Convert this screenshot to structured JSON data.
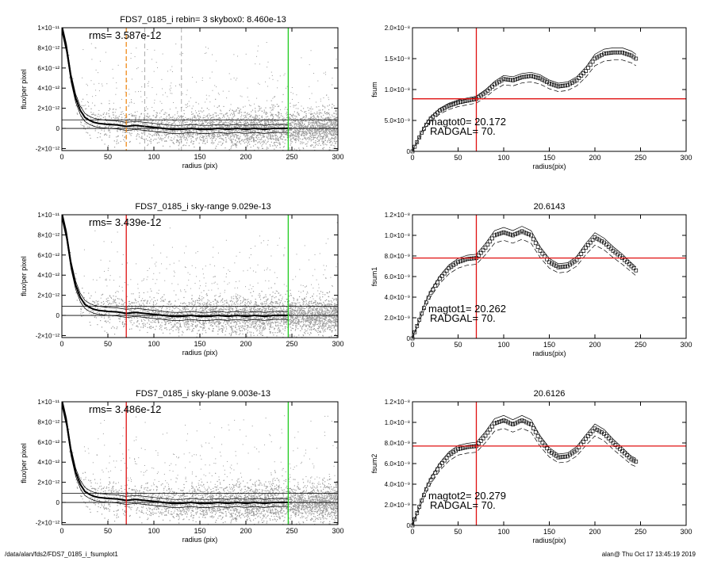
{
  "footer": {
    "path": "/data/alan/fds2/FDS7_0185_i_fsumplot1",
    "stamp": "alan@  Thu Oct 17 13:45:19 2019"
  },
  "colors": {
    "points": "#9a9a9a",
    "profile": "#000000",
    "rms_line": "#000000",
    "orange": "#f08a1a",
    "green": "#22cc22",
    "red": "#e01010"
  },
  "left_panels": [
    {
      "title": "FDS7_0185_i rebin= 3    skybox0:  8.460e-13",
      "rms_label": "rms= 3.587e-12",
      "xlabel": "radius (pix)",
      "ylabel": "flux/per pixel",
      "xticks": [
        "0",
        "50",
        "100",
        "150",
        "200",
        "250",
        "300"
      ],
      "yticks": [
        "1×10⁻¹¹",
        "8×10⁻¹²",
        "6×10⁻¹²",
        "4×10⁻¹²",
        "2×10⁻¹²",
        "0",
        "-2×10⁻¹²"
      ],
      "ytick_values": [
        1e-11,
        8e-12,
        6e-12,
        4e-12,
        2e-12,
        0,
        -2e-12
      ],
      "xlim": [
        0,
        300
      ],
      "ylim": [
        -2.2e-12,
        1e-11
      ],
      "rms_value": 8.5e-13,
      "vlines": [
        {
          "x": 70,
          "color": "orange",
          "dashed": true
        },
        {
          "x": 246,
          "color": "green",
          "dashed": false
        },
        {
          "x": 90,
          "color": "gray",
          "dashed": true
        },
        {
          "x": 130,
          "color": "gray",
          "dashed": true
        }
      ]
    },
    {
      "title": "FDS7_0185_i sky-range  9.029e-13",
      "rms_label": "rms= 3.439e-12",
      "xlabel": "radius (pix)",
      "ylabel": "flux/per pixel",
      "xticks": [
        "0",
        "50",
        "100",
        "150",
        "200",
        "250",
        "300"
      ],
      "yticks": [
        "1×10⁻¹¹",
        "8×10⁻¹²",
        "6×10⁻¹²",
        "4×10⁻¹²",
        "2×10⁻¹²",
        "0",
        "-2×10⁻¹²"
      ],
      "ytick_values": [
        1e-11,
        8e-12,
        6e-12,
        4e-12,
        2e-12,
        0,
        -2e-12
      ],
      "xlim": [
        0,
        300
      ],
      "ylim": [
        -2.2e-12,
        1e-11
      ],
      "rms_value": 9e-13,
      "vlines": [
        {
          "x": 70,
          "color": "red",
          "dashed": false
        },
        {
          "x": 246,
          "color": "green",
          "dashed": false
        }
      ]
    },
    {
      "title": "FDS7_0185_i sky-plane  9.003e-13",
      "rms_label": "rms= 3.486e-12",
      "xlabel": "radius (pix)",
      "ylabel": "flux/per pixel",
      "xticks": [
        "0",
        "50",
        "100",
        "150",
        "200",
        "250",
        "300"
      ],
      "yticks": [
        "1×10⁻¹¹",
        "8×10⁻¹²",
        "6×10⁻¹²",
        "4×10⁻¹²",
        "2×10⁻¹²",
        "0",
        "-2×10⁻¹²"
      ],
      "ytick_values": [
        1e-11,
        8e-12,
        6e-12,
        4e-12,
        2e-12,
        0,
        -2e-12
      ],
      "xlim": [
        0,
        300
      ],
      "ylim": [
        -2.2e-12,
        1e-11
      ],
      "rms_value": 9e-13,
      "vlines": [
        {
          "x": 70,
          "color": "red",
          "dashed": false
        },
        {
          "x": 246,
          "color": "green",
          "dashed": false
        }
      ]
    }
  ],
  "right_panels": [
    {
      "title": "",
      "ylabel": "fsum",
      "xlabel": "radius(pix)",
      "mag_label": "magtot0=  20.172",
      "radgal_label": "RADGAL=     70.",
      "xticks": [
        "0",
        "50",
        "100",
        "150",
        "200",
        "250",
        "300"
      ],
      "yticks": [
        "2.0×10⁻⁸",
        "1.5×10⁻⁸",
        "1.0×10⁻⁸",
        "5.0×10⁻⁹",
        "0"
      ],
      "ytick_values": [
        2e-08,
        1.5e-08,
        1e-08,
        5e-09,
        0
      ],
      "xlim": [
        0,
        300
      ],
      "ylim": [
        0,
        2e-08
      ],
      "hline": 8.5e-09,
      "vline": 70
    },
    {
      "title": "20.6143",
      "ylabel": "fsum1",
      "xlabel": "radius(pix)",
      "mag_label": "magtot1=  20.262",
      "radgal_label": "RADGAL=     70.",
      "xticks": [
        "0",
        "50",
        "100",
        "150",
        "200",
        "250",
        "300"
      ],
      "yticks": [
        "1.2×10⁻⁸",
        "1.0×10⁻⁸",
        "8.0×10⁻⁹",
        "6.0×10⁻⁹",
        "4.0×10⁻⁹",
        "2.0×10⁻⁹",
        "0"
      ],
      "ytick_values": [
        1.2e-08,
        1e-08,
        8e-09,
        6e-09,
        4e-09,
        2e-09,
        0
      ],
      "xlim": [
        0,
        300
      ],
      "ylim": [
        0,
        1.2e-08
      ],
      "hline": 7.8e-09,
      "vline": 70
    },
    {
      "title": "20.6126",
      "ylabel": "fsum2",
      "xlabel": "radius(pix)",
      "mag_label": "magtot2=  20.279",
      "radgal_label": "RADGAL=     70.",
      "xticks": [
        "0",
        "50",
        "100",
        "150",
        "200",
        "250",
        "300"
      ],
      "yticks": [
        "1.2×10⁻⁸",
        "1.0×10⁻⁸",
        "8.0×10⁻⁹",
        "6.0×10⁻⁹",
        "4.0×10⁻⁹",
        "2.0×10⁻⁹",
        "0"
      ],
      "ytick_values": [
        1.2e-08,
        1e-08,
        8e-09,
        6e-09,
        4e-09,
        2e-09,
        0
      ],
      "xlim": [
        0,
        300
      ],
      "ylim": [
        0,
        1.2e-08
      ],
      "hline": 7.7e-09,
      "vline": 70
    }
  ],
  "chart_data": [
    {
      "type": "scatter",
      "title": "FDS7_0185_i rebin= 3    skybox0:  8.460e-13",
      "xlabel": "radius (pix)",
      "ylabel": "flux/per pixel",
      "xlim": [
        0,
        300
      ],
      "ylim": [
        -2.2e-12,
        1e-11
      ],
      "annotations": [
        "rms= 3.587e-12"
      ],
      "series": [
        {
          "name": "",
          "x": [
            0,
            5,
            10,
            15,
            20,
            25,
            30,
            35,
            40,
            50,
            60,
            70,
            80,
            90,
            100,
            110,
            120,
            130,
            140,
            150,
            160,
            170,
            180,
            190,
            200,
            210,
            220,
            230,
            240,
            246
          ],
          "y": [
            1e-11,
            8e-12,
            5e-12,
            3e-12,
            1.8e-12,
            1.1e-12,
            8e-13,
            6e-13,
            5e-13,
            4e-13,
            3.5e-13,
            2e-13,
            3e-13,
            2e-13,
            1e-13,
            0,
            -1e-13,
            -1e-13,
            0,
            -1e-13,
            -1e-13,
            0,
            -1e-13,
            0,
            -1e-13,
            0,
            -1e-13,
            0,
            0,
            0
          ]
        }
      ]
    },
    {
      "type": "scatter",
      "title": "FDS7_0185_i sky-range  9.029e-13",
      "xlabel": "radius (pix)",
      "ylabel": "flux/per pixel",
      "xlim": [
        0,
        300
      ],
      "ylim": [
        -2.2e-12,
        1e-11
      ],
      "annotations": [
        "rms= 3.439e-12"
      ],
      "series": [
        {
          "name": "",
          "x": [
            0,
            5,
            10,
            15,
            20,
            25,
            30,
            35,
            40,
            50,
            60,
            70,
            80,
            90,
            100,
            110,
            120,
            130,
            140,
            150,
            160,
            170,
            180,
            190,
            200,
            210,
            220,
            230,
            240,
            246
          ],
          "y": [
            1e-11,
            8e-12,
            5e-12,
            3e-12,
            1.8e-12,
            1.1e-12,
            8e-13,
            6e-13,
            5e-13,
            4e-13,
            3.5e-13,
            2e-13,
            3e-13,
            2e-13,
            1e-13,
            0,
            -1e-13,
            -1e-13,
            0,
            -1e-13,
            -1e-13,
            0,
            -1e-13,
            0,
            -1e-13,
            0,
            -1e-13,
            0,
            0,
            0
          ]
        }
      ]
    },
    {
      "type": "scatter",
      "title": "FDS7_0185_i sky-plane  9.003e-13",
      "xlabel": "radius (pix)",
      "ylabel": "flux/per pixel",
      "xlim": [
        0,
        300
      ],
      "ylim": [
        -2.2e-12,
        1e-11
      ],
      "annotations": [
        "rms= 3.486e-12"
      ],
      "series": [
        {
          "name": "",
          "x": [
            0,
            5,
            10,
            15,
            20,
            25,
            30,
            35,
            40,
            50,
            60,
            70,
            80,
            90,
            100,
            110,
            120,
            130,
            140,
            150,
            160,
            170,
            180,
            190,
            200,
            210,
            220,
            230,
            240,
            246
          ],
          "y": [
            1e-11,
            8e-12,
            5e-12,
            3e-12,
            1.8e-12,
            1.1e-12,
            8e-13,
            6e-13,
            5e-13,
            4e-13,
            3.5e-13,
            2e-13,
            3e-13,
            2e-13,
            1e-13,
            0,
            -1e-13,
            -1e-13,
            0,
            -1e-13,
            -1e-13,
            0,
            -1e-13,
            0,
            -1e-13,
            0,
            -1e-13,
            0,
            0,
            0
          ]
        }
      ]
    },
    {
      "type": "line",
      "title": "",
      "xlabel": "radius(pix)",
      "ylabel": "fsum",
      "xlim": [
        0,
        300
      ],
      "ylim": [
        0,
        2e-08
      ],
      "annotations": [
        "magtot0=  20.172",
        "RADGAL=     70."
      ],
      "series": [
        {
          "name": "",
          "x": [
            0,
            5,
            10,
            15,
            20,
            30,
            40,
            50,
            60,
            70,
            80,
            90,
            100,
            110,
            120,
            130,
            140,
            150,
            160,
            170,
            180,
            190,
            200,
            210,
            220,
            230,
            240,
            245
          ],
          "y": [
            0,
            1.5e-09,
            3e-09,
            4.3e-09,
            5.3e-09,
            6.6e-09,
            7.4e-09,
            7.9e-09,
            8.2e-09,
            8.5e-09,
            9.5e-09,
            1.08e-08,
            1.17e-08,
            1.15e-08,
            1.2e-08,
            1.22e-08,
            1.18e-08,
            1.1e-08,
            1.05e-08,
            1.07e-08,
            1.15e-08,
            1.3e-08,
            1.5e-08,
            1.58e-08,
            1.6e-08,
            1.6e-08,
            1.55e-08,
            1.5e-08
          ]
        }
      ]
    },
    {
      "type": "line",
      "title": "20.6143",
      "xlabel": "radius(pix)",
      "ylabel": "fsum1",
      "xlim": [
        0,
        300
      ],
      "ylim": [
        0,
        1.2e-08
      ],
      "annotations": [
        "magtot1=  20.262",
        "RADGAL=     70."
      ],
      "series": [
        {
          "name": "",
          "x": [
            0,
            5,
            10,
            15,
            20,
            30,
            40,
            50,
            60,
            70,
            80,
            90,
            100,
            110,
            120,
            130,
            140,
            150,
            160,
            170,
            180,
            190,
            200,
            210,
            220,
            230,
            240,
            245
          ],
          "y": [
            0,
            1.2e-09,
            2.4e-09,
            3.5e-09,
            4.4e-09,
            5.8e-09,
            6.8e-09,
            7.4e-09,
            7.7e-09,
            7.8e-09,
            8.8e-09,
            1e-08,
            1.03e-08,
            1e-08,
            1.04e-08,
            1e-08,
            8.5e-09,
            7.4e-09,
            6.9e-09,
            7e-09,
            7.6e-09,
            8.8e-09,
            9.8e-09,
            9.3e-09,
            8.5e-09,
            7.8e-09,
            7e-09,
            6.6e-09
          ]
        }
      ]
    },
    {
      "type": "line",
      "title": "20.6126",
      "xlabel": "radius(pix)",
      "ylabel": "fsum2",
      "xlim": [
        0,
        300
      ],
      "ylim": [
        0,
        1.2e-08
      ],
      "annotations": [
        "magtot2=  20.279",
        "RADGAL=     70."
      ],
      "series": [
        {
          "name": "",
          "x": [
            0,
            5,
            10,
            15,
            20,
            30,
            40,
            50,
            60,
            70,
            80,
            90,
            100,
            110,
            120,
            130,
            140,
            150,
            160,
            170,
            180,
            190,
            200,
            210,
            220,
            230,
            240,
            245
          ],
          "y": [
            0,
            1.2e-09,
            2.4e-09,
            3.5e-09,
            4.4e-09,
            5.8e-09,
            6.8e-09,
            7.4e-09,
            7.6e-09,
            7.7e-09,
            8.7e-09,
            9.9e-09,
            1.02e-08,
            9.8e-09,
            1.02e-08,
            9.8e-09,
            8.3e-09,
            7.2e-09,
            6.6e-09,
            6.7e-09,
            7.3e-09,
            8.4e-09,
            9.4e-09,
            8.9e-09,
            8e-09,
            7.2e-09,
            6.4e-09,
            6.2e-09
          ]
        }
      ]
    }
  ]
}
